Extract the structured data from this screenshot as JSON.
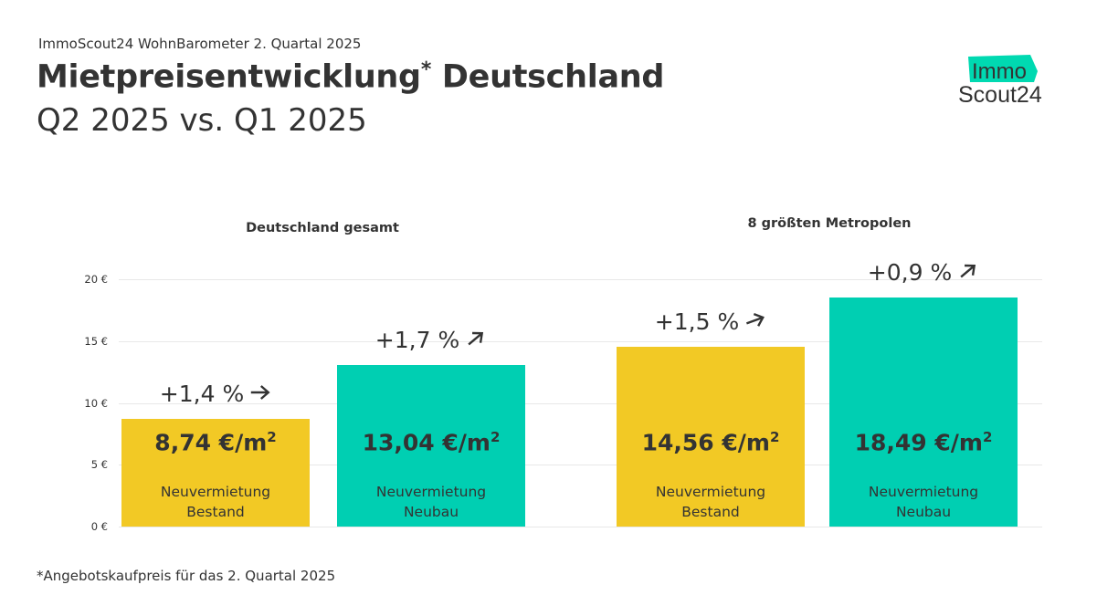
{
  "header": {
    "supertitle": "ImmoScout24 WohnBarometer 2. Quartal 2025",
    "title": "Mietpreisentwicklung",
    "title_mark": "*",
    "title_rest": " Deutschland",
    "subtitle": "Q2 2025 vs. Q1 2025"
  },
  "logo": {
    "line1": "Immo",
    "line2": "Scout24",
    "color": "#00D9B1"
  },
  "footnote": "*Angebotskaufpreis für das 2. Quartal 2025",
  "chart_data": {
    "type": "bar",
    "ylim": [
      0,
      20
    ],
    "yticks": [
      0,
      5,
      10,
      15,
      20
    ],
    "ytick_labels": [
      "0 €",
      "5 €",
      "10 €",
      "15 €",
      "20 €"
    ],
    "grid": true,
    "groups": [
      {
        "title": "Deutschland gesamt",
        "bars": [
          {
            "value": 8.74,
            "value_label": "8,74 €/m",
            "unit_sup": "2",
            "label1": "Neuvermietung",
            "label2": "Bestand",
            "change": "+1,4 %",
            "arrow": "arrow-right",
            "color": "#F2C925"
          },
          {
            "value": 13.04,
            "value_label": "13,04 €/m",
            "unit_sup": "2",
            "label1": "Neuvermietung",
            "label2": "Neubau",
            "change": "+1,7 %",
            "arrow": "arrow-up-right",
            "color": "#00CFB2"
          }
        ]
      },
      {
        "title": "8 größten Metropolen",
        "bars": [
          {
            "value": 14.56,
            "value_label": "14,56 €/m",
            "unit_sup": "2",
            "label1": "Neuvermietung",
            "label2": "Bestand",
            "change": "+1,5 %",
            "arrow": "arrow-slight-up-right",
            "color": "#F2C925"
          },
          {
            "value": 18.49,
            "value_label": "18,49 €/m",
            "unit_sup": "2",
            "label1": "Neuvermietung",
            "label2": "Neubau",
            "change": "+0,9 %",
            "arrow": "arrow-up-right",
            "color": "#00CFB2"
          }
        ]
      }
    ]
  }
}
